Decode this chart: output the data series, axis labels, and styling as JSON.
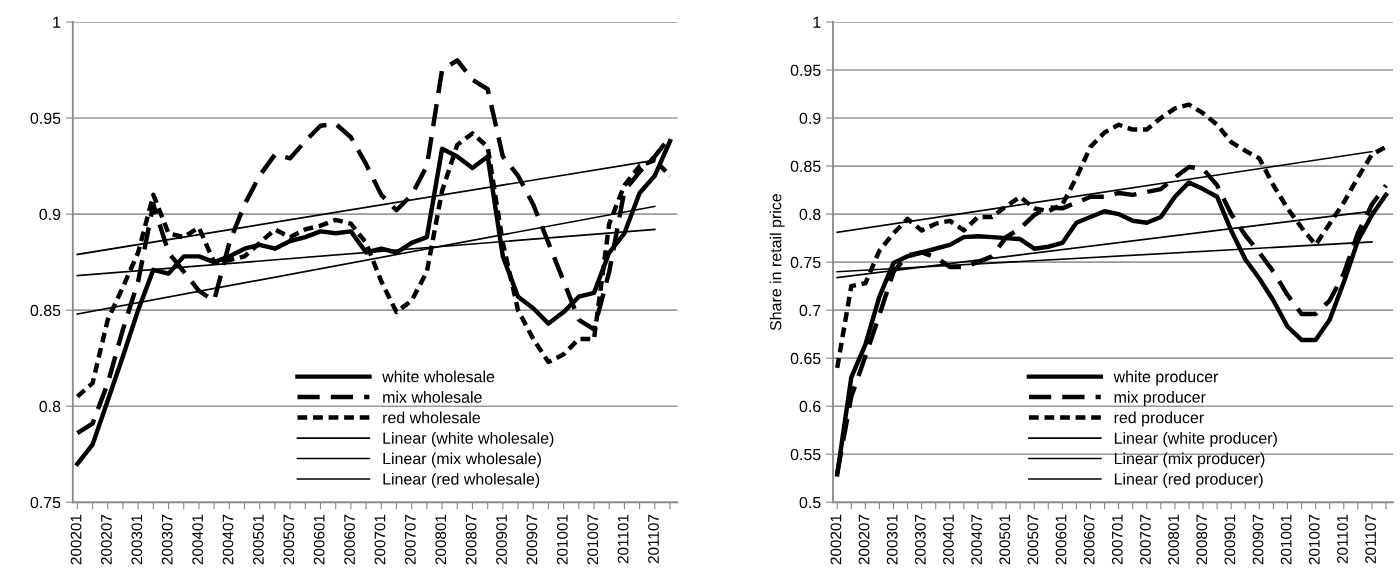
{
  "chart_data": [
    {
      "type": "line",
      "categories": [
        "200201",
        null,
        "200207",
        null,
        "200301",
        null,
        "200307",
        null,
        "200401",
        null,
        "200407",
        null,
        "200501",
        null,
        "200507",
        null,
        "200601",
        null,
        "200607",
        null,
        "200701",
        null,
        "200707",
        null,
        "200801",
        null,
        "200807",
        null,
        "200901",
        null,
        "200907",
        null,
        "201001",
        null,
        "201007",
        null,
        "201101",
        null,
        "201107",
        null
      ],
      "ylim": [
        0.75,
        1
      ],
      "yticks": [
        0.75,
        0.8,
        0.85,
        0.9,
        0.95,
        1
      ],
      "grid": "y",
      "legend": "bottom right",
      "series": [
        {
          "name": "white wholesale",
          "color": "#000000",
          "line_style": "solid",
          "values": [
            0.77,
            0.78,
            0.803,
            0.826,
            0.85,
            0.871,
            0.869,
            0.878,
            0.878,
            0.875,
            0.878,
            0.882,
            0.884,
            0.882,
            0.886,
            0.888,
            0.891,
            0.89,
            0.891,
            0.88,
            0.882,
            0.88,
            0.885,
            0.888,
            0.934,
            0.93,
            0.924,
            0.93,
            0.878,
            0.857,
            0.851,
            0.843,
            0.849,
            0.857,
            0.859,
            0.88,
            0.89,
            0.911,
            0.92,
            0.938
          ]
        },
        {
          "name": "mix wholesale",
          "color": "#000000",
          "line_style": "dashed",
          "values": [
            0.786,
            0.791,
            0.812,
            0.84,
            0.865,
            0.905,
            0.88,
            0.87,
            0.86,
            0.855,
            0.885,
            0.905,
            0.92,
            0.931,
            0.929,
            0.938,
            0.946,
            0.947,
            0.94,
            0.926,
            0.91,
            0.902,
            0.91,
            0.925,
            0.975,
            0.98,
            0.97,
            0.965,
            0.93,
            0.92,
            0.905,
            0.885,
            0.865,
            0.845,
            0.84,
            0.87,
            0.912,
            0.922,
            0.93,
            0.94
          ]
        },
        {
          "name": "red wholesale",
          "color": "#000000",
          "line_style": "dotted",
          "values": [
            0.805,
            0.812,
            0.845,
            0.862,
            0.88,
            0.91,
            0.89,
            0.888,
            0.893,
            0.875,
            0.876,
            0.878,
            0.885,
            0.892,
            0.888,
            0.892,
            0.894,
            0.897,
            0.895,
            0.885,
            0.865,
            0.849,
            0.855,
            0.87,
            0.912,
            0.936,
            0.942,
            0.935,
            0.885,
            0.85,
            0.835,
            0.823,
            0.827,
            0.835,
            0.835,
            0.895,
            0.915,
            0.925,
            0.928,
            0.92
          ]
        },
        {
          "name": "Linear (white wholesale)",
          "color": "#000000",
          "line_style": "solid",
          "x": [
            "200201",
            "201107"
          ],
          "values": [
            0.848,
            0.904
          ]
        },
        {
          "name": "Linear (mix wholesale)",
          "color": "#000000",
          "line_style": "solid",
          "x": [
            "200201",
            "201107"
          ],
          "values": [
            0.879,
            0.928
          ]
        },
        {
          "name": "Linear (red wholesale)",
          "color": "#000000",
          "line_style": "solid",
          "x": [
            "200201",
            "201107"
          ],
          "values": [
            0.868,
            0.892
          ]
        }
      ]
    },
    {
      "type": "line",
      "ylabel": "Share in retail price",
      "categories": [
        "200201",
        null,
        "200207",
        null,
        "200301",
        null,
        "200307",
        null,
        "200401",
        null,
        "200407",
        null,
        "200501",
        null,
        "200507",
        null,
        "200601",
        null,
        "200607",
        null,
        "200701",
        null,
        "200707",
        null,
        "200801",
        null,
        "200807",
        null,
        "200901",
        null,
        "200907",
        null,
        "201001",
        null,
        "201007",
        null,
        "201101",
        null,
        "201107",
        null
      ],
      "ylim": [
        0.5,
        1
      ],
      "yticks": [
        0.5,
        0.55,
        0.6,
        0.65,
        0.7,
        0.75,
        0.8,
        0.85,
        0.9,
        0.95,
        1
      ],
      "grid": "y",
      "legend": "bottom right",
      "series": [
        {
          "name": "white producer",
          "color": "#000000",
          "line_style": "solid",
          "values": [
            0.529,
            0.63,
            0.664,
            0.714,
            0.749,
            0.756,
            0.76,
            0.764,
            0.768,
            0.776,
            0.777,
            0.776,
            0.775,
            0.774,
            0.764,
            0.766,
            0.77,
            0.791,
            0.797,
            0.803,
            0.8,
            0.793,
            0.791,
            0.797,
            0.818,
            0.833,
            0.826,
            0.818,
            0.783,
            0.753,
            0.733,
            0.71,
            0.683,
            0.669,
            0.669,
            0.69,
            0.729,
            0.772,
            0.799,
            0.82
          ]
        },
        {
          "name": "mix producer",
          "color": "#000000",
          "line_style": "dashed",
          "values": [
            0.53,
            0.61,
            0.652,
            0.695,
            0.74,
            0.757,
            0.76,
            0.755,
            0.745,
            0.745,
            0.75,
            0.756,
            0.776,
            0.785,
            0.799,
            0.807,
            0.806,
            0.812,
            0.818,
            0.818,
            0.822,
            0.82,
            0.823,
            0.826,
            0.838,
            0.849,
            0.847,
            0.83,
            0.8,
            0.778,
            0.76,
            0.74,
            0.716,
            0.696,
            0.696,
            0.71,
            0.738,
            0.78,
            0.81,
            0.83
          ]
        },
        {
          "name": "red producer",
          "color": "#000000",
          "line_style": "dotted",
          "values": [
            0.64,
            0.725,
            0.728,
            0.762,
            0.78,
            0.795,
            0.783,
            0.79,
            0.793,
            0.783,
            0.797,
            0.797,
            0.808,
            0.818,
            0.806,
            0.803,
            0.81,
            0.838,
            0.87,
            0.885,
            0.893,
            0.888,
            0.888,
            0.9,
            0.91,
            0.914,
            0.905,
            0.893,
            0.875,
            0.866,
            0.858,
            0.83,
            0.806,
            0.786,
            0.768,
            0.79,
            0.812,
            0.838,
            0.862,
            0.87
          ]
        },
        {
          "name": "Linear (white producer)",
          "color": "#000000",
          "line_style": "solid",
          "x": [
            "200201",
            "201107"
          ],
          "values": [
            0.734,
            0.803
          ]
        },
        {
          "name": "Linear (mix producer)",
          "color": "#000000",
          "line_style": "solid",
          "x": [
            "200201",
            "201107"
          ],
          "values": [
            0.74,
            0.771
          ]
        },
        {
          "name": "Linear (red producer)",
          "color": "#000000",
          "line_style": "solid",
          "x": [
            "200201",
            "201107"
          ],
          "values": [
            0.781,
            0.865
          ]
        }
      ]
    }
  ]
}
